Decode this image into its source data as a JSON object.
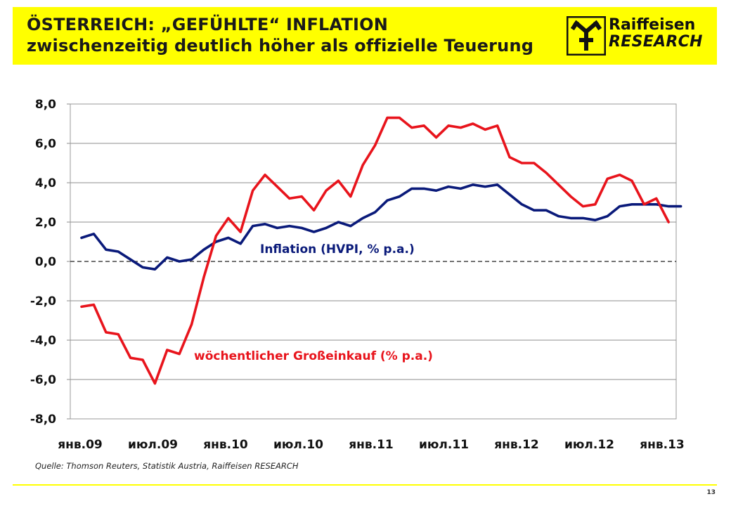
{
  "header": {
    "title_line1": "ÖSTERREICH: „GEFÜHLTE“ INFLATION",
    "title_line2": "zwischenzeitig deutlich höher als offizielle Teuerung"
  },
  "logo": {
    "line1": "Raiffeisen",
    "line2": "RESEARCH"
  },
  "source": "Quelle: Thomson Reuters, Statistik Austria, Raiffeisen RESEARCH",
  "page_number": "13",
  "colors": {
    "header_bg": "#ffff00",
    "series_hvpi": "#0a1a7a",
    "series_einkauf": "#e8141c"
  },
  "chart_data": {
    "type": "line",
    "ylim": [
      -8,
      8
    ],
    "y_ticks": [
      8,
      6,
      4,
      2,
      0,
      -2,
      -4,
      -6,
      -8
    ],
    "y_tick_labels": [
      "8,0",
      "6,0",
      "4,0",
      "2,0",
      "0,0",
      "-2,0",
      "-4,0",
      "-6,0",
      "-8,0"
    ],
    "x_tick_labels": [
      "янв.09",
      "июл.09",
      "янв.10",
      "июл.10",
      "янв.11",
      "июл.11",
      "янв.12",
      "июл.12",
      "янв.13"
    ],
    "x_months": [
      "2009-01",
      "2009-02",
      "2009-03",
      "2009-04",
      "2009-05",
      "2009-06",
      "2009-07",
      "2009-08",
      "2009-09",
      "2009-10",
      "2009-11",
      "2009-12",
      "2010-01",
      "2010-02",
      "2010-03",
      "2010-04",
      "2010-05",
      "2010-06",
      "2010-07",
      "2010-08",
      "2010-09",
      "2010-10",
      "2010-11",
      "2010-12",
      "2011-01",
      "2011-02",
      "2011-03",
      "2011-04",
      "2011-05",
      "2011-06",
      "2011-07",
      "2011-08",
      "2011-09",
      "2011-10",
      "2011-11",
      "2011-12",
      "2012-01",
      "2012-02",
      "2012-03",
      "2012-04",
      "2012-05",
      "2012-06",
      "2012-07",
      "2012-08",
      "2012-09",
      "2012-10",
      "2012-11",
      "2012-12",
      "2013-01",
      "2013-02"
    ],
    "zero_line": "dashed",
    "series": [
      {
        "name": "Inflation (HVPI, % p.a.)",
        "color": "#0a1a7a",
        "values": [
          1.2,
          1.4,
          0.6,
          0.5,
          0.1,
          -0.3,
          -0.4,
          0.2,
          0.0,
          0.1,
          0.6,
          1.0,
          1.2,
          0.9,
          1.8,
          1.9,
          1.7,
          1.8,
          1.7,
          1.5,
          1.7,
          2.0,
          1.8,
          2.2,
          2.5,
          3.1,
          3.3,
          3.7,
          3.7,
          3.6,
          3.8,
          3.7,
          3.9,
          3.8,
          3.9,
          3.4,
          2.9,
          2.6,
          2.6,
          2.3,
          2.2,
          2.2,
          2.1,
          2.3,
          2.8,
          2.9,
          2.9,
          2.9,
          2.8,
          2.8
        ]
      },
      {
        "name": "wöchentlicher Großeinkauf (% p.a.)",
        "color": "#e8141c",
        "values": [
          -2.3,
          -2.2,
          -3.6,
          -3.7,
          -4.9,
          -5.0,
          -6.2,
          -4.5,
          -4.7,
          -3.2,
          -0.8,
          1.3,
          2.2,
          1.5,
          3.6,
          4.4,
          3.8,
          3.2,
          3.3,
          2.6,
          3.6,
          4.1,
          3.3,
          4.9,
          5.9,
          7.3,
          7.3,
          6.8,
          6.9,
          6.3,
          6.9,
          6.8,
          7.0,
          6.7,
          6.9,
          5.3,
          5.0,
          5.0,
          4.5,
          3.9,
          3.3,
          2.8,
          2.9,
          4.2,
          4.4,
          4.1,
          2.9,
          3.2,
          2.0,
          null
        ]
      }
    ]
  }
}
